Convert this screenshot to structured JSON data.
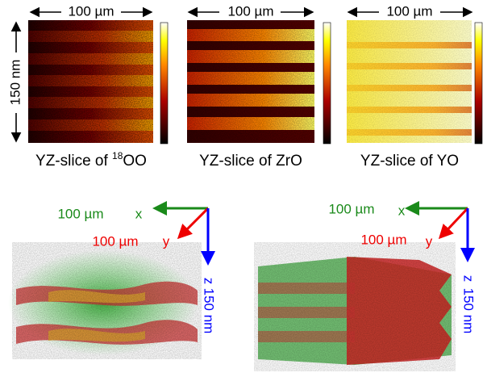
{
  "top_panels": [
    {
      "scale_x": "100 µm",
      "caption": {
        "text": "YZ-slice of ",
        "sup": "18",
        "tail": "OO"
      }
    },
    {
      "scale_x": "100 µm",
      "caption": {
        "text": "YZ-slice of ZrO"
      }
    },
    {
      "scale_x": "100 µm",
      "caption": {
        "text": "YZ-slice of YO"
      }
    }
  ],
  "scale_y": "150 nm",
  "bottom_panels": [
    {
      "x_length": "100 µm",
      "x_label": "x",
      "y_length": "100 µm",
      "y_label": "y",
      "z_label": "z",
      "z_length": "150 nm"
    },
    {
      "x_length": "100 µm",
      "x_label": "x",
      "y_length": "100 µm",
      "y_label": "y",
      "z_label": "z",
      "z_length": "150 nm"
    }
  ]
}
